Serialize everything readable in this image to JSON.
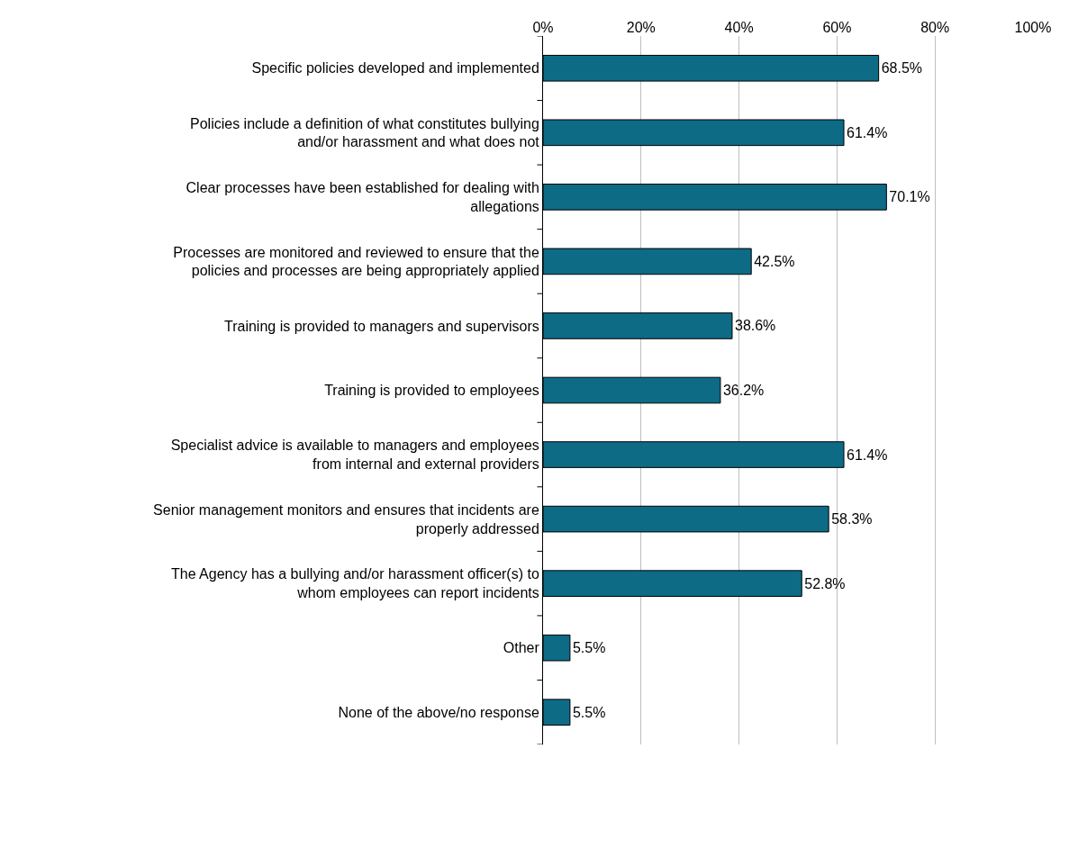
{
  "chart_data": {
    "type": "bar",
    "orientation": "horizontal",
    "categories": [
      "Specific policies developed and implemented",
      "Policies include a definition of what constitutes bullying and/or harassment and what does not",
      "Clear processes have been established for dealing with allegations",
      "Processes are monitored and reviewed to ensure that the policies and processes are being appropriately applied",
      "Training is provided to managers and supervisors",
      "Training is provided to employees",
      "Specialist advice is available to managers and employees from internal and external providers",
      "Senior management monitors and ensures that incidents are properly addressed",
      "The Agency has a bullying and/or harassment officer(s) to whom employees can report incidents",
      "Other",
      "None of the above/no response"
    ],
    "values": [
      68.5,
      61.4,
      70.1,
      42.5,
      38.6,
      36.2,
      61.4,
      58.3,
      52.8,
      5.5,
      5.5
    ],
    "value_labels": [
      "68.5%",
      "61.4%",
      "70.1%",
      "42.5%",
      "38.6%",
      "36.2%",
      "61.4%",
      "58.3%",
      "52.8%",
      "5.5%",
      "5.5%"
    ],
    "color": "#0e6b86",
    "xlim": [
      0,
      100
    ],
    "xticks": [
      {
        "value": 0,
        "label": "0%"
      },
      {
        "value": 20,
        "label": "20%"
      },
      {
        "value": 40,
        "label": "40%"
      },
      {
        "value": 60,
        "label": "60%"
      },
      {
        "value": 80,
        "label": "80%"
      },
      {
        "value": 100,
        "label": "100%"
      }
    ],
    "grid": "x"
  }
}
